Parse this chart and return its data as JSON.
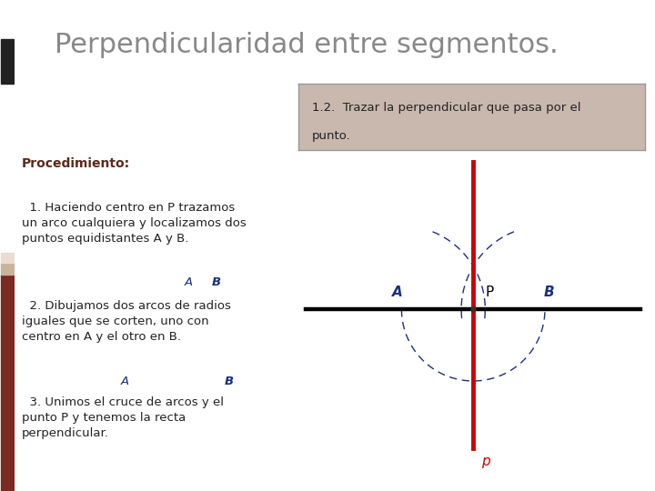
{
  "title": "Perpendicularidad entre segmentos.",
  "title_color": "#888888",
  "title_fontsize": 22,
  "bg_color": "#ffffff",
  "black_bar_color": "#222222",
  "tan_bar_color": "#c8b49a",
  "red_bar_color": "#7a2a22",
  "box_text_line1": "1.2.  Trazar la perpendicular que pasa por el",
  "box_text_line2": "punto.",
  "box_bg": "#c8b8ae",
  "box_border": "#999999",
  "proc_title": "Procedimiento:",
  "proc_title_color": "#5a2a1a",
  "step1_main": "  1. Haciendo centro en P trazamos\nun arco cualquiera y localizamos dos\npuntos equidistantes ",
  "step1_A": "A",
  "step1_mid": " y ",
  "step1_B": "B",
  "step1_end": ".",
  "step2_main": "  2. Dibujamos dos arcos de radios\niguales que se corten, uno con\ncentro en ",
  "step2_A": "A",
  "step2_mid": " y el otro en ",
  "step2_B": "B",
  "step2_end": ".",
  "step3": "  3. Unimos el cruce de arcos y el\npunto P y tenemos la recta\nperpendicular.",
  "text_color": "#222222",
  "blue_color": "#1a3080",
  "red_color": "#cc0000",
  "label_A": "A",
  "label_B": "B",
  "label_P": "P",
  "label_p": "p",
  "fontsize_text": 9.5,
  "fontsize_label": 10
}
